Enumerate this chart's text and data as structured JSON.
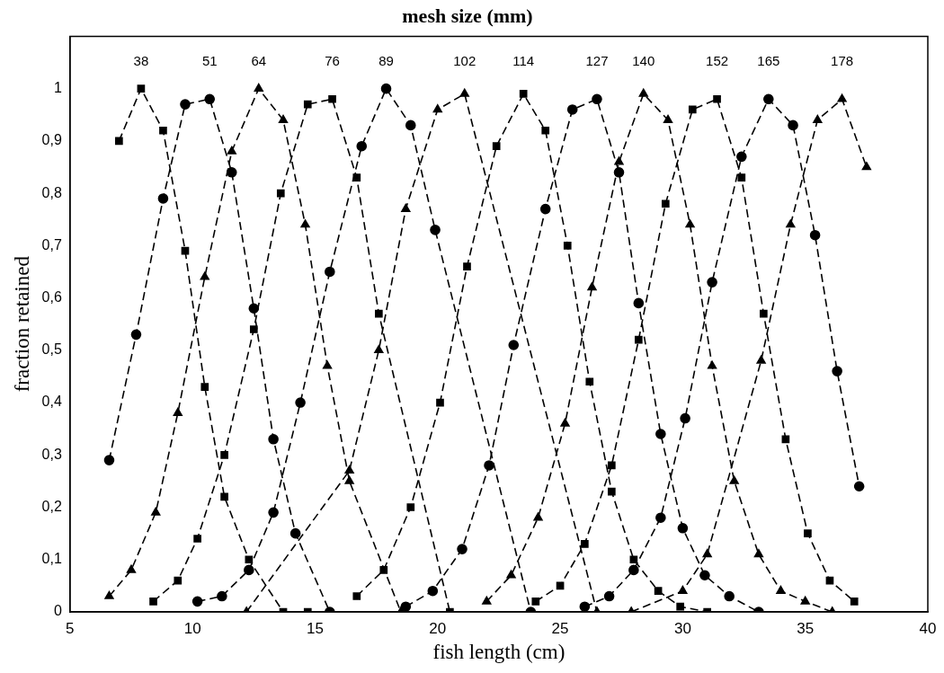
{
  "chart_data": {
    "type": "line",
    "title": "mesh size (mm)",
    "xlabel": "fish length (cm)",
    "ylabel": "fraction retained",
    "xlim": [
      5,
      40
    ],
    "xticks": [
      5,
      10,
      15,
      20,
      25,
      30,
      35,
      40
    ],
    "ylim": [
      0,
      1.1
    ],
    "yticks": [
      0,
      {
        "value": 0.1,
        "label": "0,1"
      },
      {
        "value": 0.2,
        "label": "0,2"
      },
      {
        "value": 0.3,
        "label": "0,3"
      },
      {
        "value": 0.4,
        "label": "0,4"
      },
      {
        "value": 0.5,
        "label": "0,5"
      },
      {
        "value": 0.6,
        "label": "0,6"
      },
      {
        "value": 0.7,
        "label": "0,7"
      },
      {
        "value": 0.8,
        "label": "0,8"
      },
      {
        "value": 0.9,
        "label": "0,9"
      },
      1
    ],
    "grid": false,
    "legend": false,
    "line_style": "dashed",
    "series": [
      {
        "name": "38",
        "color": "#000000",
        "marker": "square",
        "x": [
          7.0,
          7.9,
          8.8,
          9.7,
          10.5,
          11.3,
          12.3,
          13.7,
          14.7
        ],
        "values": [
          0.9,
          1.0,
          0.92,
          0.69,
          0.43,
          0.22,
          0.1,
          0,
          0
        ]
      },
      {
        "name": "51",
        "color": "#000000",
        "marker": "circle",
        "x": [
          6.6,
          7.7,
          8.8,
          9.7,
          10.7,
          11.6,
          12.5,
          13.3,
          14.2,
          15.6
        ],
        "values": [
          0.29,
          0.53,
          0.79,
          0.97,
          0.98,
          0.84,
          0.58,
          0.33,
          0.15,
          0
        ]
      },
      {
        "name": "64",
        "color": "#000000",
        "marker": "triangle",
        "x": [
          6.6,
          7.5,
          8.5,
          9.4,
          10.5,
          11.6,
          12.7,
          13.7,
          14.6,
          15.5,
          16.4,
          18.5
        ],
        "values": [
          0.03,
          0.08,
          0.19,
          0.38,
          0.64,
          0.88,
          1.0,
          0.94,
          0.74,
          0.47,
          0.25,
          0
        ]
      },
      {
        "name": "76",
        "color": "#000000",
        "marker": "square",
        "x": [
          8.4,
          9.4,
          10.2,
          11.3,
          12.5,
          13.6,
          14.7,
          15.7,
          16.7,
          17.6,
          20.5
        ],
        "values": [
          0.02,
          0.06,
          0.14,
          0.3,
          0.54,
          0.8,
          0.97,
          0.98,
          0.83,
          0.57,
          0
        ]
      },
      {
        "name": "89",
        "color": "#000000",
        "marker": "circle",
        "x": [
          10.2,
          11.2,
          12.3,
          13.3,
          14.4,
          15.6,
          16.9,
          17.9,
          18.9,
          19.9,
          23.8
        ],
        "values": [
          0.02,
          0.03,
          0.08,
          0.19,
          0.4,
          0.65,
          0.89,
          1.0,
          0.93,
          0.73,
          0
        ]
      },
      {
        "name": "102",
        "color": "#000000",
        "marker": "triangle",
        "x": [
          12.2,
          16.4,
          17.6,
          18.7,
          20.0,
          21.1,
          26.5
        ],
        "values": [
          0,
          0.27,
          0.5,
          0.77,
          0.96,
          0.99,
          0
        ]
      },
      {
        "name": "114",
        "color": "#000000",
        "marker": "square",
        "x": [
          16.7,
          17.8,
          18.9,
          20.1,
          21.2,
          22.4,
          23.5,
          24.4,
          25.3,
          26.2,
          27.1,
          28.0,
          29.0,
          29.9,
          31.0
        ],
        "values": [
          0.03,
          0.08,
          0.2,
          0.4,
          0.66,
          0.89,
          0.99,
          0.92,
          0.7,
          0.44,
          0.23,
          0.1,
          0.04,
          0.01,
          0
        ]
      },
      {
        "name": "127",
        "color": "#000000",
        "marker": "circle",
        "x": [
          18.7,
          19.8,
          21.0,
          22.1,
          23.1,
          24.4,
          25.5,
          26.5,
          27.4,
          28.2,
          29.1,
          30.0,
          30.9,
          31.9,
          33.1
        ],
        "values": [
          0.01,
          0.04,
          0.12,
          0.28,
          0.51,
          0.77,
          0.96,
          0.98,
          0.84,
          0.59,
          0.34,
          0.16,
          0.07,
          0.03,
          0
        ]
      },
      {
        "name": "140",
        "color": "#000000",
        "marker": "triangle",
        "x": [
          22.0,
          23.0,
          24.1,
          25.2,
          26.3,
          27.4,
          28.4,
          29.4,
          30.3,
          31.2,
          32.1,
          33.1,
          34.0,
          35.0,
          36.1
        ],
        "values": [
          0.02,
          0.07,
          0.18,
          0.36,
          0.62,
          0.86,
          0.99,
          0.94,
          0.74,
          0.47,
          0.25,
          0.11,
          0.04,
          0.02,
          0
        ]
      },
      {
        "name": "152",
        "color": "#000000",
        "marker": "square",
        "x": [
          24.0,
          25.0,
          26.0,
          27.1,
          28.2,
          29.3,
          30.4,
          31.4,
          32.4,
          33.3,
          34.2,
          35.1,
          36.0,
          37.0
        ],
        "values": [
          0.02,
          0.05,
          0.13,
          0.28,
          0.52,
          0.78,
          0.96,
          0.98,
          0.83,
          0.57,
          0.33,
          0.15,
          0.06,
          0.02
        ]
      },
      {
        "name": "165",
        "color": "#000000",
        "marker": "circle",
        "x": [
          26.0,
          27.0,
          28.0,
          29.1,
          30.1,
          31.2,
          32.4,
          33.5,
          34.5,
          35.4,
          36.3,
          37.2
        ],
        "values": [
          0.01,
          0.03,
          0.08,
          0.18,
          0.37,
          0.63,
          0.87,
          0.98,
          0.93,
          0.72,
          0.46,
          0.24
        ]
      },
      {
        "name": "178",
        "color": "#000000",
        "marker": "triangle",
        "x": [
          27.9,
          30.0,
          31.0,
          33.2,
          34.4,
          35.5,
          36.5,
          37.5
        ],
        "values": [
          0,
          0.04,
          0.11,
          0.48,
          0.74,
          0.94,
          0.98,
          0.85
        ]
      }
    ]
  }
}
